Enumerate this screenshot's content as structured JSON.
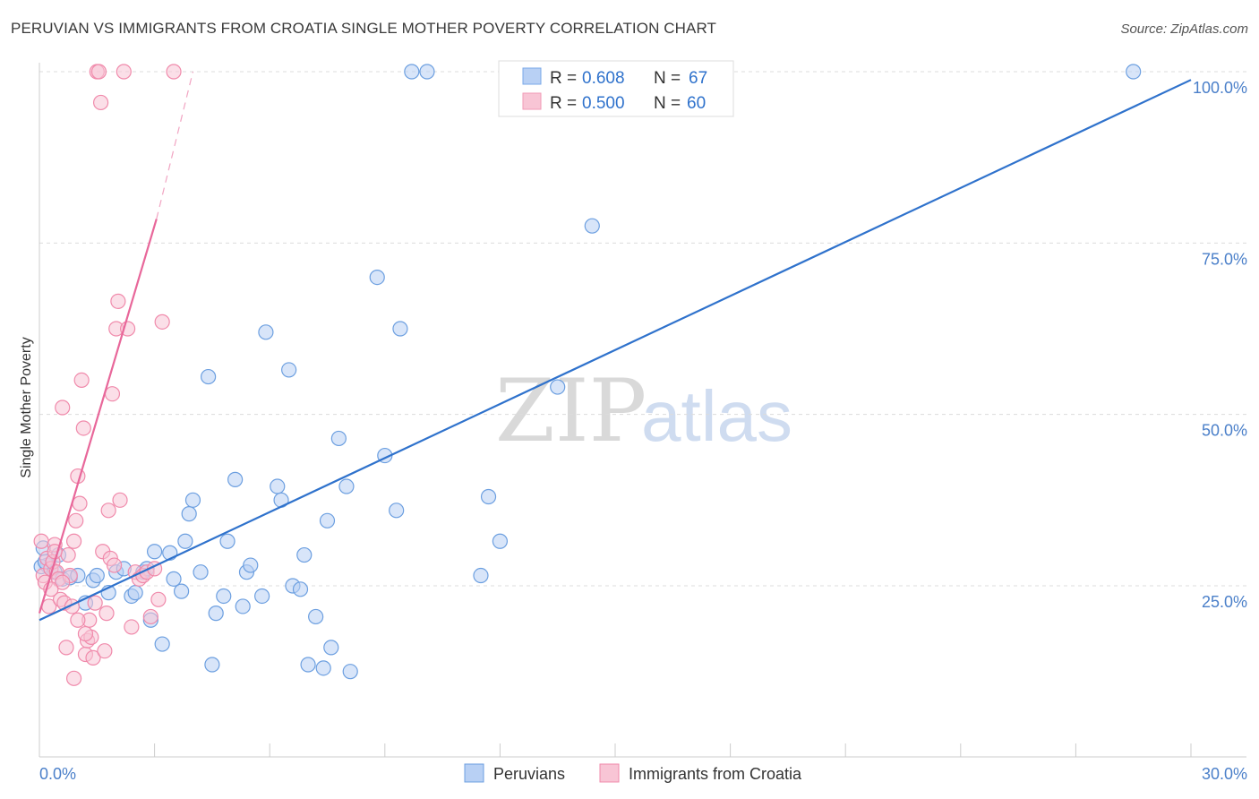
{
  "title": "PERUVIAN VS IMMIGRANTS FROM CROATIA SINGLE MOTHER POVERTY CORRELATION CHART",
  "source": "Source: ZipAtlas.com",
  "watermark": {
    "zip": "ZIP",
    "atlas": "atlas"
  },
  "chart_data": {
    "type": "scatter",
    "ylabel": "Single Mother Poverty",
    "xlabel": "",
    "xlim": [
      0,
      30
    ],
    "ylim": [
      5,
      103
    ],
    "x_tick_labels": {
      "left": "0.0%",
      "right": "30.0%"
    },
    "y_ticks": [
      {
        "value": 25,
        "label": "25.0%"
      },
      {
        "value": 50,
        "label": "50.0%"
      },
      {
        "value": 75,
        "label": "75.0%"
      },
      {
        "value": 100,
        "label": "100.0%"
      }
    ],
    "grid": true,
    "legend_position": "top-center",
    "stats_legend": [
      {
        "r_label": "R =",
        "r": "0.608",
        "n_label": "N =",
        "n": "67",
        "color": "#7aa8e8",
        "fill": "#b8d0f4"
      },
      {
        "r_label": "R =",
        "r": "0.500",
        "n_label": "N =",
        "n": "60",
        "color": "#f29ab6",
        "fill": "#f8c5d5"
      }
    ],
    "series": [
      {
        "name": "Peruvians",
        "color": "#6c9fe0",
        "fill": "#b8d0f4",
        "trend": {
          "x0": 0,
          "y0": 20.0,
          "x1": 30,
          "y1": 98.8,
          "color": "#2f72cc"
        },
        "points": [
          [
            0.1,
            30.5
          ],
          [
            0.2,
            28.0
          ],
          [
            0.3,
            27.5
          ],
          [
            0.4,
            27.0
          ],
          [
            0.5,
            29.5
          ],
          [
            0.6,
            26.0
          ],
          [
            0.8,
            26.2
          ],
          [
            1.0,
            26.5
          ],
          [
            1.2,
            22.5
          ],
          [
            1.4,
            25.8
          ],
          [
            1.5,
            26.5
          ],
          [
            1.8,
            24.0
          ],
          [
            2.0,
            27.0
          ],
          [
            2.2,
            27.5
          ],
          [
            2.4,
            23.5
          ],
          [
            2.5,
            24.0
          ],
          [
            2.7,
            27.0
          ],
          [
            2.8,
            27.5
          ],
          [
            2.9,
            20.0
          ],
          [
            3.0,
            30.0
          ],
          [
            3.2,
            16.5
          ],
          [
            3.4,
            29.8
          ],
          [
            3.5,
            26.0
          ],
          [
            3.7,
            24.2
          ],
          [
            3.8,
            31.5
          ],
          [
            3.9,
            35.5
          ],
          [
            4.0,
            37.5
          ],
          [
            4.2,
            27.0
          ],
          [
            4.4,
            55.5
          ],
          [
            4.5,
            13.5
          ],
          [
            4.6,
            21.0
          ],
          [
            4.8,
            23.5
          ],
          [
            4.9,
            31.5
          ],
          [
            5.1,
            40.5
          ],
          [
            5.3,
            22.0
          ],
          [
            5.4,
            27.0
          ],
          [
            5.5,
            28.0
          ],
          [
            5.8,
            23.5
          ],
          [
            5.9,
            62.0
          ],
          [
            6.2,
            39.5
          ],
          [
            6.3,
            37.5
          ],
          [
            6.5,
            56.5
          ],
          [
            6.6,
            25.0
          ],
          [
            6.8,
            24.5
          ],
          [
            6.9,
            29.5
          ],
          [
            7.0,
            13.5
          ],
          [
            7.2,
            20.5
          ],
          [
            7.4,
            13.0
          ],
          [
            7.5,
            34.5
          ],
          [
            7.6,
            16.0
          ],
          [
            7.8,
            46.5
          ],
          [
            8.0,
            39.5
          ],
          [
            8.1,
            12.5
          ],
          [
            8.8,
            70.0
          ],
          [
            9.0,
            44.0
          ],
          [
            9.3,
            36.0
          ],
          [
            9.4,
            62.5
          ],
          [
            9.7,
            100.0
          ],
          [
            10.1,
            100.0
          ],
          [
            11.5,
            26.5
          ],
          [
            11.7,
            38.0
          ],
          [
            12.0,
            31.5
          ],
          [
            13.5,
            54.0
          ],
          [
            14.4,
            77.5
          ],
          [
            28.5,
            100.0
          ],
          [
            0.05,
            27.8
          ],
          [
            0.15,
            28.5
          ]
        ]
      },
      {
        "name": "Immigrants from Croatia",
        "color": "#f08aab",
        "fill": "#f8c5d5",
        "trend": {
          "x0": 0,
          "y0": 21.0,
          "x1": 3.05,
          "y1": 78.5,
          "color": "#e8679a",
          "dash_to": {
            "x": 4.0,
            "y": 100.0
          }
        },
        "points": [
          [
            0.05,
            31.5
          ],
          [
            0.1,
            26.5
          ],
          [
            0.15,
            25.5
          ],
          [
            0.2,
            29.0
          ],
          [
            0.25,
            22.0
          ],
          [
            0.3,
            27.5
          ],
          [
            0.35,
            28.5
          ],
          [
            0.4,
            31.0
          ],
          [
            0.45,
            27.0
          ],
          [
            0.5,
            26.0
          ],
          [
            0.55,
            23.0
          ],
          [
            0.6,
            51.0
          ],
          [
            0.65,
            22.5
          ],
          [
            0.7,
            16.0
          ],
          [
            0.75,
            29.5
          ],
          [
            0.8,
            26.5
          ],
          [
            0.85,
            22.0
          ],
          [
            0.9,
            31.5
          ],
          [
            0.95,
            34.5
          ],
          [
            1.0,
            41.0
          ],
          [
            1.05,
            37.0
          ],
          [
            1.1,
            55.0
          ],
          [
            1.15,
            48.0
          ],
          [
            1.2,
            15.0
          ],
          [
            1.25,
            17.0
          ],
          [
            1.3,
            20.0
          ],
          [
            1.35,
            17.5
          ],
          [
            1.4,
            14.5
          ],
          [
            1.45,
            22.5
          ],
          [
            1.5,
            100.0
          ],
          [
            1.55,
            100.0
          ],
          [
            1.6,
            95.5
          ],
          [
            1.65,
            30.0
          ],
          [
            1.7,
            15.5
          ],
          [
            1.75,
            21.0
          ],
          [
            1.8,
            36.0
          ],
          [
            1.85,
            29.0
          ],
          [
            1.9,
            53.0
          ],
          [
            1.95,
            28.0
          ],
          [
            2.0,
            62.5
          ],
          [
            2.05,
            66.5
          ],
          [
            2.1,
            37.5
          ],
          [
            2.2,
            100.0
          ],
          [
            2.3,
            62.5
          ],
          [
            2.4,
            19.0
          ],
          [
            2.5,
            27.0
          ],
          [
            2.6,
            26.0
          ],
          [
            2.7,
            26.5
          ],
          [
            2.8,
            27.0
          ],
          [
            2.9,
            20.5
          ],
          [
            3.0,
            27.5
          ],
          [
            3.1,
            23.0
          ],
          [
            3.2,
            63.5
          ],
          [
            3.5,
            100.0
          ],
          [
            0.9,
            11.5
          ],
          [
            1.0,
            20.0
          ],
          [
            0.6,
            25.5
          ],
          [
            0.3,
            24.5
          ],
          [
            1.2,
            18.0
          ],
          [
            0.4,
            30.0
          ]
        ]
      }
    ]
  }
}
